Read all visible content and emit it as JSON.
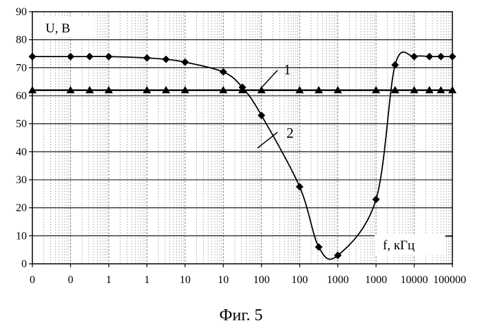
{
  "chart_data": {
    "type": "line",
    "caption": "Фиг. 5",
    "ylabel": "U, В",
    "xlabel": "f, кГц",
    "ylim": [
      0,
      90
    ],
    "yticks": [
      0,
      10,
      20,
      30,
      40,
      50,
      60,
      70,
      80,
      90
    ],
    "x_tick_labels": [
      "0",
      "0",
      "1",
      "1",
      "10",
      "10",
      "100",
      "100",
      "1000",
      "1000",
      "10000",
      "100000"
    ],
    "grid": true,
    "x": [
      0.05,
      0.25,
      0.5,
      1,
      2.5,
      5,
      10,
      25,
      50,
      100,
      250,
      500,
      1000,
      2500,
      5000,
      10000,
      25000,
      50000,
      100000
    ],
    "series": [
      {
        "name": "1",
        "marker": "triangle",
        "values": [
          62,
          62,
          62,
          62,
          62,
          62,
          62,
          62,
          62,
          62,
          62,
          62,
          62,
          62,
          62,
          62,
          62,
          62,
          62
        ]
      },
      {
        "name": "2",
        "marker": "diamond",
        "values": [
          74,
          74,
          74,
          74,
          73.5,
          73,
          72,
          68.5,
          63,
          53,
          27.5,
          6,
          3,
          23,
          71,
          74,
          74,
          74,
          74
        ]
      }
    ]
  }
}
